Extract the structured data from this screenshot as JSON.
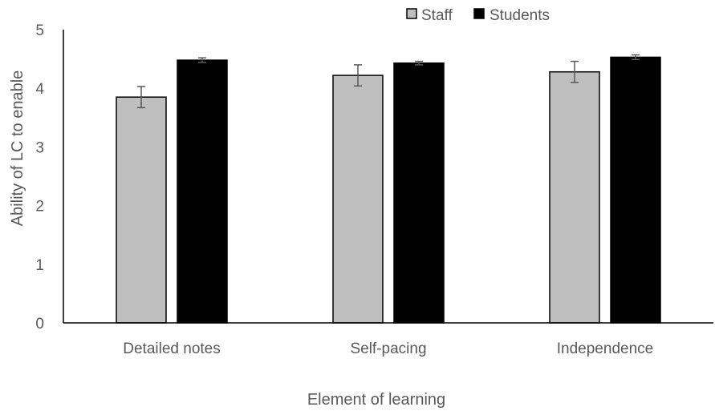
{
  "chart_data": {
    "type": "bar",
    "title": "",
    "xlabel": "Element of learning",
    "ylabel": "Ability of LC to enable",
    "ylim": [
      0,
      5
    ],
    "yticks": [
      0,
      1,
      2,
      3,
      4,
      5
    ],
    "grid": false,
    "legend_position": "top-right",
    "categories": [
      "Detailed notes",
      "Self-pacing",
      "Independence"
    ],
    "series": [
      {
        "name": "Staff",
        "color": "#bfbfbf",
        "values": [
          3.85,
          4.22,
          4.28
        ],
        "error": [
          0.18,
          0.18,
          0.18
        ]
      },
      {
        "name": "Students",
        "color": "#000000",
        "values": [
          4.48,
          4.43,
          4.53
        ],
        "error": [
          0.04,
          0.03,
          0.04
        ]
      }
    ]
  }
}
